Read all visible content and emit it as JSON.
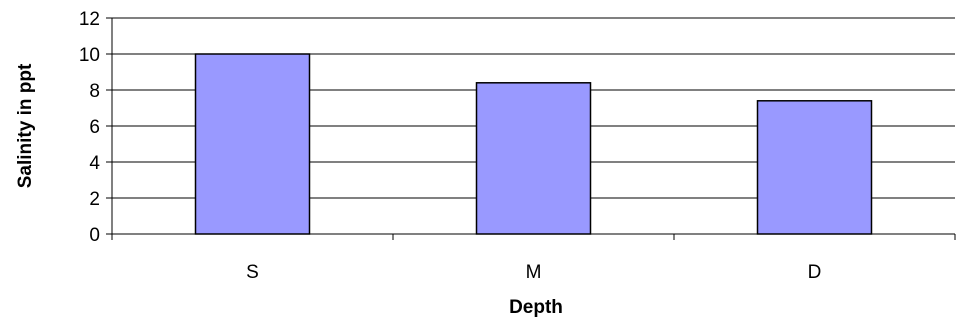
{
  "chart_data": {
    "type": "bar",
    "categories": [
      "S",
      "M",
      "D"
    ],
    "values": [
      10.0,
      8.4,
      7.4
    ],
    "xlabel": "Depth",
    "ylabel": "Salinity in ppt",
    "ylim": [
      0,
      12
    ],
    "yticks": [
      "0",
      "2",
      "4",
      "6",
      "8",
      "10",
      "12"
    ],
    "grid": true,
    "legend": "none",
    "colors": {
      "bar_fill": "#9999ff",
      "bar_stroke": "#000000",
      "grid": "#000000",
      "axis": "#000000"
    }
  }
}
